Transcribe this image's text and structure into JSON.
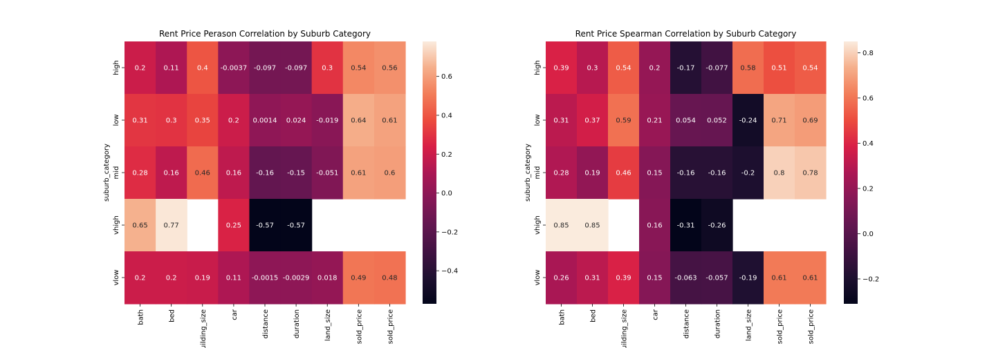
{
  "chart_data": [
    {
      "type": "heatmap",
      "title": "Rent Price Perason Correlation by Suburb Category",
      "xlabel": "",
      "ylabel": "suburb_category",
      "x": [
        "bath",
        "bed",
        "building_size",
        "car",
        "distance",
        "duration",
        "land_size",
        "sold_price",
        "sold_price"
      ],
      "y": [
        "high",
        "low",
        "mid",
        "vhigh",
        "vlow"
      ],
      "values": [
        [
          0.2,
          0.11,
          0.4,
          -0.0037,
          -0.097,
          -0.097,
          0.3,
          0.54,
          0.56
        ],
        [
          0.31,
          0.3,
          0.35,
          0.2,
          0.0014,
          0.024,
          -0.019,
          0.64,
          0.61
        ],
        [
          0.28,
          0.16,
          0.46,
          0.16,
          -0.16,
          -0.15,
          -0.051,
          0.61,
          0.6
        ],
        [
          0.65,
          0.77,
          null,
          0.25,
          -0.57,
          -0.57,
          null,
          null,
          null
        ],
        [
          0.2,
          0.2,
          0.19,
          0.11,
          -0.0015,
          -0.0029,
          0.018,
          0.49,
          0.48
        ]
      ],
      "labels": [
        [
          "0.2",
          "0.11",
          "0.4",
          "-0.0037",
          "-0.097",
          "-0.097",
          "0.3",
          "0.54",
          "0.56"
        ],
        [
          "0.31",
          "0.3",
          "0.35",
          "0.2",
          "0.0014",
          "0.024",
          "-0.019",
          "0.64",
          "0.61"
        ],
        [
          "0.28",
          "0.16",
          "0.46",
          "0.16",
          "-0.16",
          "-0.15",
          "-0.051",
          "0.61",
          "0.6"
        ],
        [
          "0.65",
          "0.77",
          "",
          "0.25",
          "-0.57",
          "-0.57",
          "",
          "",
          ""
        ],
        [
          "0.2",
          "0.2",
          "0.19",
          "0.11",
          "-0.0015",
          "-0.0029",
          "0.018",
          "0.49",
          "0.48"
        ]
      ],
      "vmin": -0.57,
      "vmax": 0.78,
      "colorbar_ticks": [
        -0.4,
        -0.2,
        0.0,
        0.2,
        0.4,
        0.6
      ],
      "colorbar_tick_labels": [
        "−0.4",
        "−0.2",
        "0.0",
        "0.2",
        "0.4",
        "0.6"
      ],
      "colormap": "rocket"
    },
    {
      "type": "heatmap",
      "title": "Rent Price Spearman Correlation by Suburb Category",
      "xlabel": "",
      "ylabel": "suburb_category",
      "x": [
        "bath",
        "bed",
        "building_size",
        "car",
        "distance",
        "duration",
        "land_size",
        "sold_price",
        "sold_price"
      ],
      "y": [
        "high",
        "low",
        "mid",
        "vhigh",
        "vlow"
      ],
      "values": [
        [
          0.39,
          0.3,
          0.54,
          0.2,
          -0.17,
          -0.077,
          0.58,
          0.51,
          0.54
        ],
        [
          0.31,
          0.37,
          0.59,
          0.21,
          0.054,
          0.052,
          -0.24,
          0.71,
          0.69
        ],
        [
          0.28,
          0.19,
          0.46,
          0.15,
          -0.16,
          -0.16,
          -0.2,
          0.8,
          0.78
        ],
        [
          0.85,
          0.85,
          null,
          0.16,
          -0.31,
          -0.26,
          null,
          null,
          null
        ],
        [
          0.26,
          0.31,
          0.39,
          0.15,
          -0.063,
          -0.057,
          -0.19,
          0.61,
          0.61
        ]
      ],
      "labels": [
        [
          "0.39",
          "0.3",
          "0.54",
          "0.2",
          "-0.17",
          "-0.077",
          "0.58",
          "0.51",
          "0.54"
        ],
        [
          "0.31",
          "0.37",
          "0.59",
          "0.21",
          "0.054",
          "0.052",
          "-0.24",
          "0.71",
          "0.69"
        ],
        [
          "0.28",
          "0.19",
          "0.46",
          "0.15",
          "-0.16",
          "-0.16",
          "-0.2",
          "0.8",
          "0.78"
        ],
        [
          "0.85",
          "0.85",
          "",
          "0.16",
          "-0.31",
          "-0.26",
          "",
          "",
          ""
        ],
        [
          "0.26",
          "0.31",
          "0.39",
          "0.15",
          "-0.063",
          "-0.057",
          "-0.19",
          "0.61",
          "0.61"
        ]
      ],
      "vmin": -0.31,
      "vmax": 0.85,
      "colorbar_ticks": [
        -0.2,
        0.0,
        0.2,
        0.4,
        0.6,
        0.8
      ],
      "colorbar_tick_labels": [
        "−0.2",
        "0.0",
        "0.2",
        "0.4",
        "0.6",
        "0.8"
      ],
      "colormap": "rocket"
    }
  ]
}
